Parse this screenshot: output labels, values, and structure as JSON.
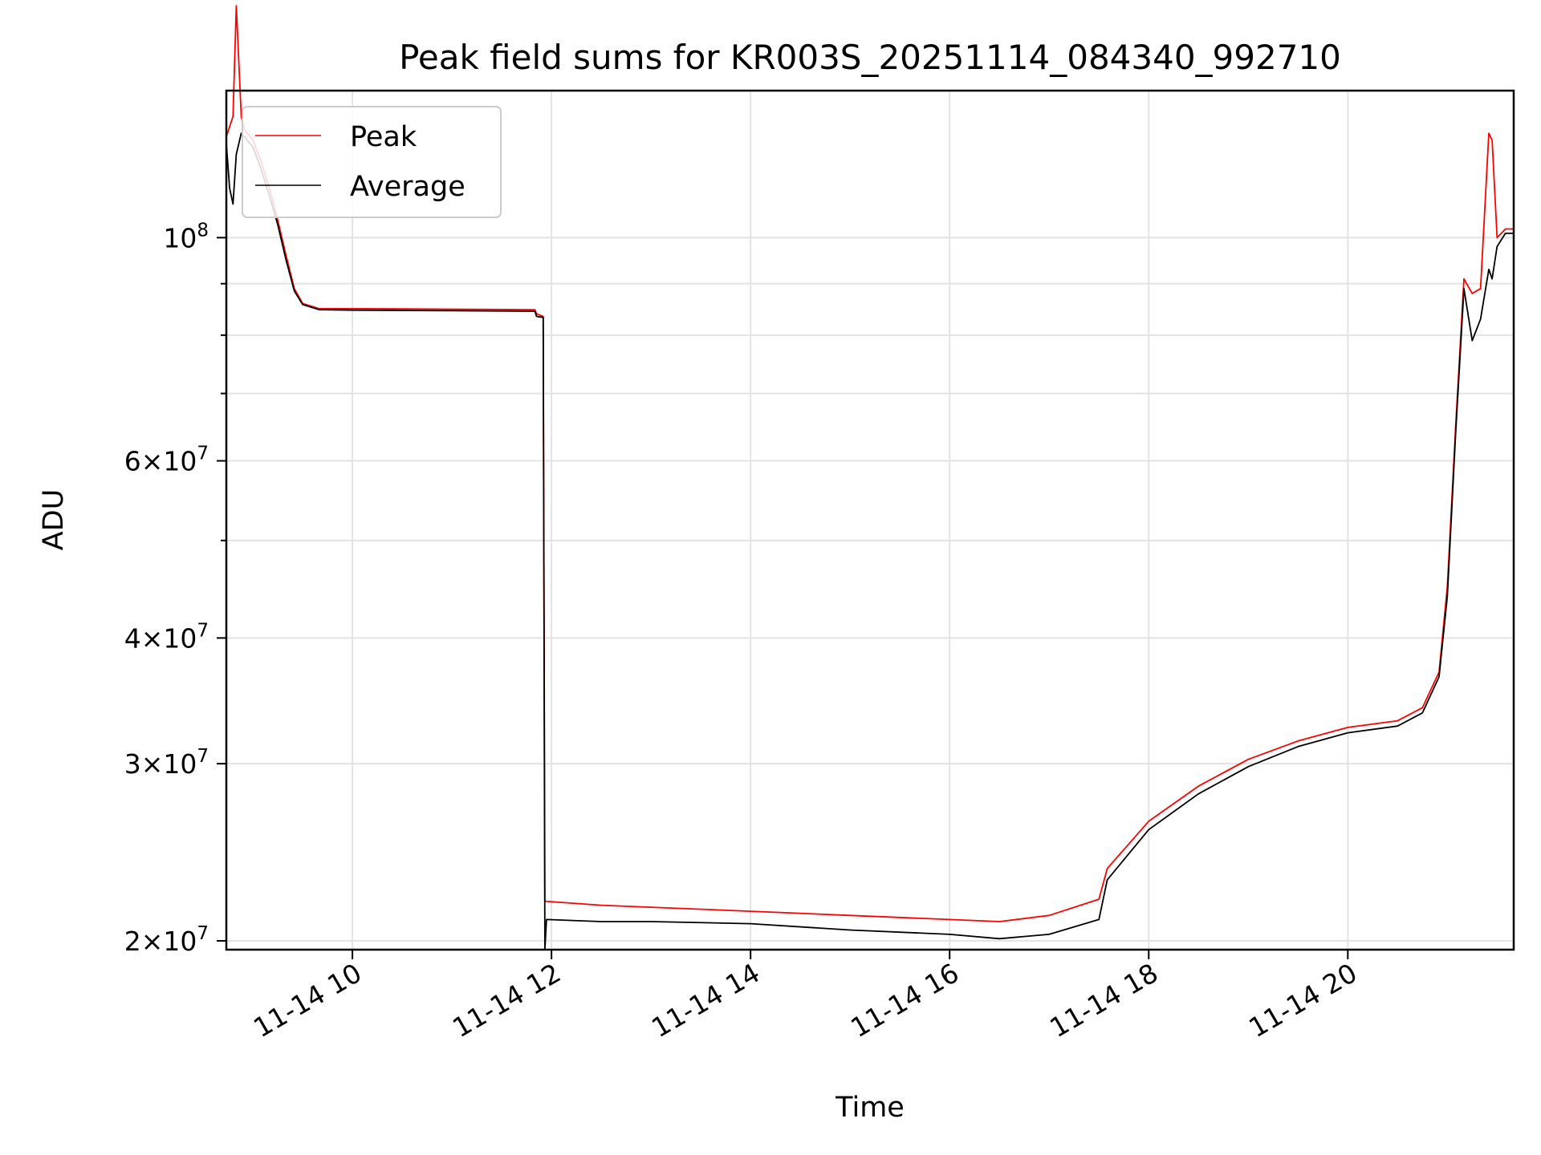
{
  "chart_data": {
    "type": "line",
    "title": "Peak field sums for KR003S_20251114_084340_992710",
    "xlabel": "Time",
    "ylabel": "ADU",
    "x_axis": "datetime",
    "xlim": [
      "2025-11-14 08:44",
      "2025-11-14 21:40"
    ],
    "x_ticks": [
      {
        "time": "2025-11-14 10:00",
        "label": "11-14 10"
      },
      {
        "time": "2025-11-14 12:00",
        "label": "11-14 12"
      },
      {
        "time": "2025-11-14 14:00",
        "label": "11-14 14"
      },
      {
        "time": "2025-11-14 16:00",
        "label": "11-14 16"
      },
      {
        "time": "2025-11-14 18:00",
        "label": "11-14 18"
      },
      {
        "time": "2025-11-14 20:00",
        "label": "11-14 20"
      }
    ],
    "y_scale": "log",
    "ylim": [
      19600000,
      140000000
    ],
    "y_ticks": [
      {
        "value": 20000000,
        "base": "2",
        "exp": "7"
      },
      {
        "value": 30000000,
        "base": "3",
        "exp": "7"
      },
      {
        "value": 40000000,
        "base": "4",
        "exp": "7"
      },
      {
        "value": 60000000,
        "base": "6",
        "exp": "7"
      },
      {
        "value": 100000000,
        "base": "10",
        "exp": "8"
      }
    ],
    "grid": true,
    "legend_position": "top-left",
    "series": [
      {
        "name": "Peak",
        "color": "#ff0000",
        "points": [
          [
            "2025-11-14 08:44",
            126000000
          ],
          [
            "2025-11-14 08:48",
            132000000
          ],
          [
            "2025-11-14 08:50",
            170000000
          ],
          [
            "2025-11-14 08:53",
            132000000
          ],
          [
            "2025-11-14 08:55",
            128000000
          ],
          [
            "2025-11-14 09:00",
            125000000
          ],
          [
            "2025-11-14 09:05",
            119000000
          ],
          [
            "2025-11-14 09:10",
            112000000
          ],
          [
            "2025-11-14 09:15",
            104000000
          ],
          [
            "2025-11-14 09:20",
            96000000
          ],
          [
            "2025-11-14 09:25",
            89000000
          ],
          [
            "2025-11-14 09:30",
            86000000
          ],
          [
            "2025-11-14 09:40",
            85000000
          ],
          [
            "2025-11-14 10:00",
            85000000
          ],
          [
            "2025-11-14 11:00",
            84900000
          ],
          [
            "2025-11-14 11:50",
            84800000
          ],
          [
            "2025-11-14 11:51",
            84000000
          ],
          [
            "2025-11-14 11:55",
            83500000
          ],
          [
            "2025-11-14 11:56",
            21900000
          ],
          [
            "2025-11-14 12:30",
            21700000
          ],
          [
            "2025-11-14 13:00",
            21600000
          ],
          [
            "2025-11-14 14:00",
            21400000
          ],
          [
            "2025-11-14 15:00",
            21200000
          ],
          [
            "2025-11-14 16:00",
            21000000
          ],
          [
            "2025-11-14 16:30",
            20900000
          ],
          [
            "2025-11-14 17:00",
            21200000
          ],
          [
            "2025-11-14 17:30",
            22000000
          ],
          [
            "2025-11-14 17:35",
            23600000
          ],
          [
            "2025-11-14 18:00",
            26300000
          ],
          [
            "2025-11-14 18:30",
            28500000
          ],
          [
            "2025-11-14 19:00",
            30300000
          ],
          [
            "2025-11-14 19:30",
            31600000
          ],
          [
            "2025-11-14 20:00",
            32600000
          ],
          [
            "2025-11-14 20:30",
            33100000
          ],
          [
            "2025-11-14 20:45",
            34100000
          ],
          [
            "2025-11-14 20:55",
            37000000
          ],
          [
            "2025-11-14 21:00",
            45000000
          ],
          [
            "2025-11-14 21:05",
            65000000
          ],
          [
            "2025-11-14 21:10",
            91000000
          ],
          [
            "2025-11-14 21:15",
            88000000
          ],
          [
            "2025-11-14 21:20",
            89000000
          ],
          [
            "2025-11-14 21:25",
            127000000
          ],
          [
            "2025-11-14 21:27",
            125000000
          ],
          [
            "2025-11-14 21:30",
            100000000
          ],
          [
            "2025-11-14 21:35",
            102000000
          ],
          [
            "2025-11-14 21:40",
            102000000
          ]
        ]
      },
      {
        "name": "Average",
        "color": "#000000",
        "points": [
          [
            "2025-11-14 08:44",
            124000000
          ],
          [
            "2025-11-14 08:46",
            112000000
          ],
          [
            "2025-11-14 08:48",
            108000000
          ],
          [
            "2025-11-14 08:50",
            121000000
          ],
          [
            "2025-11-14 08:53",
            127000000
          ],
          [
            "2025-11-14 08:55",
            126000000
          ],
          [
            "2025-11-14 09:00",
            123000000
          ],
          [
            "2025-11-14 09:05",
            117000000
          ],
          [
            "2025-11-14 09:10",
            110000000
          ],
          [
            "2025-11-14 09:15",
            103000000
          ],
          [
            "2025-11-14 09:20",
            95000000
          ],
          [
            "2025-11-14 09:25",
            88500000
          ],
          [
            "2025-11-14 09:30",
            85800000
          ],
          [
            "2025-11-14 09:40",
            84800000
          ],
          [
            "2025-11-14 10:00",
            84700000
          ],
          [
            "2025-11-14 11:00",
            84600000
          ],
          [
            "2025-11-14 11:50",
            84500000
          ],
          [
            "2025-11-14 11:51",
            83500000
          ],
          [
            "2025-11-14 11:55",
            83300000
          ],
          [
            "2025-11-14 11:56",
            19600000
          ],
          [
            "2025-11-14 11:57",
            21000000
          ],
          [
            "2025-11-14 12:30",
            20900000
          ],
          [
            "2025-11-14 13:00",
            20900000
          ],
          [
            "2025-11-14 14:00",
            20800000
          ],
          [
            "2025-11-14 15:00",
            20500000
          ],
          [
            "2025-11-14 16:00",
            20300000
          ],
          [
            "2025-11-14 16:30",
            20100000
          ],
          [
            "2025-11-14 17:00",
            20300000
          ],
          [
            "2025-11-14 17:30",
            21000000
          ],
          [
            "2025-11-14 17:35",
            23000000
          ],
          [
            "2025-11-14 18:00",
            25800000
          ],
          [
            "2025-11-14 18:30",
            28000000
          ],
          [
            "2025-11-14 19:00",
            29800000
          ],
          [
            "2025-11-14 19:30",
            31200000
          ],
          [
            "2025-11-14 20:00",
            32200000
          ],
          [
            "2025-11-14 20:30",
            32700000
          ],
          [
            "2025-11-14 20:45",
            33700000
          ],
          [
            "2025-11-14 20:55",
            36600000
          ],
          [
            "2025-11-14 21:00",
            44000000
          ],
          [
            "2025-11-14 21:05",
            64000000
          ],
          [
            "2025-11-14 21:10",
            89000000
          ],
          [
            "2025-11-14 21:15",
            79000000
          ],
          [
            "2025-11-14 21:20",
            83000000
          ],
          [
            "2025-11-14 21:25",
            93000000
          ],
          [
            "2025-11-14 21:27",
            91000000
          ],
          [
            "2025-11-14 21:30",
            98000000
          ],
          [
            "2025-11-14 21:35",
            101000000
          ],
          [
            "2025-11-14 21:40",
            101000000
          ]
        ]
      }
    ]
  }
}
